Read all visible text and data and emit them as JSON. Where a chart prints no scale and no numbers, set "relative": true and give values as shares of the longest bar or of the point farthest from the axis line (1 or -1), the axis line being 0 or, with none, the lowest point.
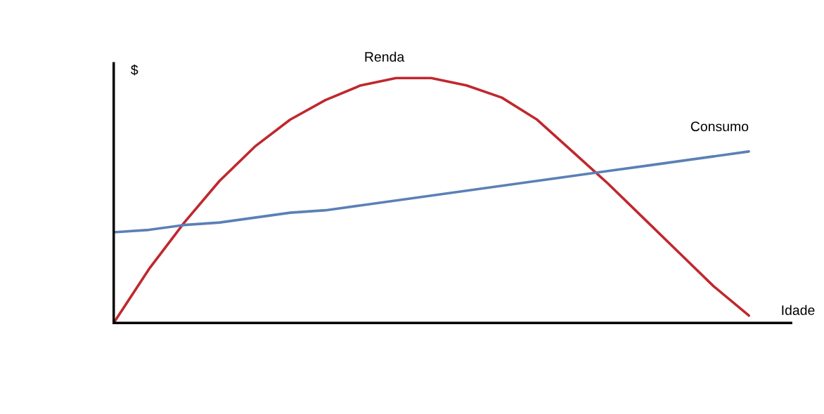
{
  "chart_data": {
    "type": "line",
    "relative": true,
    "xlabel": "Idade",
    "ylabel": "$",
    "marker": "none",
    "line_style": "solid",
    "categories": [
      null,
      null,
      null,
      null,
      null,
      null,
      null,
      null,
      null,
      null,
      null,
      null,
      null,
      null,
      null,
      null,
      null,
      null,
      null
    ],
    "series": [
      {
        "name": "Renda",
        "color": "#c0282d",
        "values": [
          0,
          0.22,
          0.41,
          0.58,
          0.72,
          0.83,
          0.91,
          0.97,
          1.0,
          1.0,
          0.97,
          0.92,
          0.83,
          0.7,
          0.57,
          0.43,
          0.29,
          0.15,
          0.03
        ]
      },
      {
        "name": "Consumo",
        "color": "#5b80b6",
        "values": [
          0.37,
          0.38,
          0.4,
          0.41,
          0.43,
          0.45,
          0.46,
          0.48,
          0.5,
          0.52,
          0.54,
          0.56,
          0.58,
          0.6,
          0.62,
          0.64,
          0.66,
          0.68,
          0.7
        ]
      }
    ]
  }
}
